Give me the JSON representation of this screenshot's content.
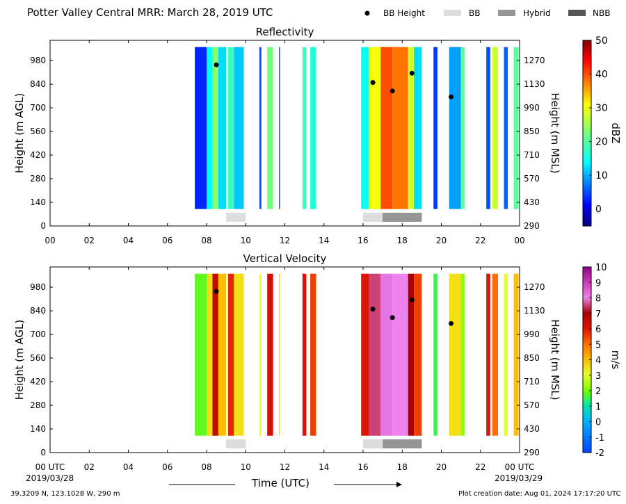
{
  "page": {
    "title": "Potter Valley Central MRR:  March 28, 2019 UTC",
    "legend": [
      {
        "label": "BB Height",
        "kind": "dot",
        "color": "#000000"
      },
      {
        "label": "BB",
        "kind": "bar",
        "color": "#dddddd"
      },
      {
        "label": "Hybrid",
        "kind": "bar",
        "color": "#959595"
      },
      {
        "label": "NBB",
        "kind": "bar",
        "color": "#555555"
      }
    ],
    "time_axis_label": "Time (UTC)",
    "start_date": "2019/03/28",
    "end_date": "2019/03/29",
    "location": "39.3209 N, 123.1028 W, 290 m",
    "creation_date": "Plot creation date: Aug 01, 2024 17:17:20 UTC"
  },
  "chart_data": [
    {
      "type": "heatmap",
      "title": "Reflectivity",
      "ylabel": "Height (m AGL)",
      "ylabel_right": "Height (m MSL)",
      "colorbar_label": "dBZ",
      "x_ticks": [
        "00",
        "02",
        "04",
        "06",
        "08",
        "10",
        "12",
        "14",
        "16",
        "18",
        "20",
        "22",
        "00"
      ],
      "xlim": [
        0,
        24
      ],
      "ylim": [
        0,
        1100
      ],
      "y_ticks": [
        0,
        140,
        280,
        420,
        560,
        700,
        840,
        980
      ],
      "y_ticks_right": [
        290,
        430,
        570,
        710,
        850,
        990,
        1130,
        1270
      ],
      "colorbar_ticks": [
        0,
        10,
        20,
        30,
        40,
        50
      ],
      "clim": [
        -5,
        50
      ],
      "data_extent_height": [
        100,
        1060
      ],
      "bright_band_height": [
        {
          "time": 8.5,
          "height": 955
        },
        {
          "time": 16.5,
          "height": 850
        },
        {
          "time": 17.5,
          "height": 800
        },
        {
          "time": 18.5,
          "height": 905
        },
        {
          "time": 20.5,
          "height": 765
        }
      ],
      "bb_type_bar": [
        {
          "start": 9.0,
          "end": 10.0,
          "type": "BB"
        },
        {
          "start": 16.0,
          "end": 17.0,
          "type": "BB"
        },
        {
          "start": 17.0,
          "end": 19.0,
          "type": "Hybrid"
        }
      ],
      "echo_segments": [
        {
          "start": 7.4,
          "end": 8.0,
          "value": 3
        },
        {
          "start": 8.0,
          "end": 8.3,
          "value": 14
        },
        {
          "start": 8.3,
          "end": 8.6,
          "value": 24
        },
        {
          "start": 8.6,
          "end": 9.0,
          "value": 12
        },
        {
          "start": 9.1,
          "end": 9.4,
          "value": 18
        },
        {
          "start": 9.4,
          "end": 9.9,
          "value": 11
        },
        {
          "start": 10.7,
          "end": 10.8,
          "value": 5
        },
        {
          "start": 11.1,
          "end": 11.4,
          "value": 22
        },
        {
          "start": 11.7,
          "end": 11.75,
          "value": 5
        },
        {
          "start": 12.9,
          "end": 13.1,
          "value": 18
        },
        {
          "start": 13.3,
          "end": 13.6,
          "value": 16
        },
        {
          "start": 15.9,
          "end": 16.3,
          "value": 14
        },
        {
          "start": 16.3,
          "end": 16.9,
          "value": 30
        },
        {
          "start": 16.9,
          "end": 17.5,
          "value": 40
        },
        {
          "start": 17.5,
          "end": 18.3,
          "value": 38
        },
        {
          "start": 18.3,
          "end": 18.6,
          "value": 28
        },
        {
          "start": 18.6,
          "end": 19.0,
          "value": 12
        },
        {
          "start": 19.6,
          "end": 19.8,
          "value": 4
        },
        {
          "start": 20.4,
          "end": 21.0,
          "value": 9
        },
        {
          "start": 21.0,
          "end": 21.2,
          "value": 20
        },
        {
          "start": 22.3,
          "end": 22.5,
          "value": 5
        },
        {
          "start": 22.6,
          "end": 22.9,
          "value": 28
        },
        {
          "start": 23.2,
          "end": 23.4,
          "value": 6
        },
        {
          "start": 23.7,
          "end": 23.95,
          "value": 20
        }
      ]
    },
    {
      "type": "heatmap",
      "title": "Vertical Velocity",
      "ylabel": "Height (m AGL)",
      "ylabel_right": "Height (m MSL)",
      "colorbar_label": "m/s",
      "x_ticks": [
        "00 UTC",
        "02",
        "04",
        "06",
        "08",
        "10",
        "12",
        "14",
        "16",
        "18",
        "20",
        "22",
        "00 UTC"
      ],
      "xlim": [
        0,
        24
      ],
      "ylim": [
        0,
        1100
      ],
      "y_ticks": [
        0,
        140,
        280,
        420,
        560,
        700,
        840,
        980
      ],
      "y_ticks_right": [
        290,
        430,
        570,
        710,
        850,
        990,
        1130,
        1270
      ],
      "colorbar_ticks": [
        -2,
        -1,
        0,
        1,
        2,
        3,
        4,
        5,
        6,
        7,
        8,
        9,
        10
      ],
      "clim": [
        -2,
        10
      ],
      "data_extent_height": [
        100,
        1060
      ],
      "bright_band_height": [
        {
          "time": 8.5,
          "height": 955
        },
        {
          "time": 16.5,
          "height": 850
        },
        {
          "time": 17.5,
          "height": 800
        },
        {
          "time": 18.5,
          "height": 905
        },
        {
          "time": 20.5,
          "height": 765
        }
      ],
      "bb_type_bar": [
        {
          "start": 9.0,
          "end": 10.0,
          "type": "BB"
        },
        {
          "start": 16.0,
          "end": 17.0,
          "type": "BB"
        },
        {
          "start": 17.0,
          "end": 19.0,
          "type": "Hybrid"
        }
      ],
      "echo_segments": [
        {
          "start": 7.4,
          "end": 8.0,
          "value": 1.8
        },
        {
          "start": 8.0,
          "end": 8.3,
          "value": 3.5
        },
        {
          "start": 8.3,
          "end": 8.6,
          "value": 6.5
        },
        {
          "start": 8.6,
          "end": 9.0,
          "value": 4.0
        },
        {
          "start": 9.1,
          "end": 9.4,
          "value": 5.8
        },
        {
          "start": 9.4,
          "end": 9.9,
          "value": 3.5
        },
        {
          "start": 10.7,
          "end": 10.8,
          "value": 3.0
        },
        {
          "start": 11.1,
          "end": 11.4,
          "value": 6.2
        },
        {
          "start": 11.7,
          "end": 11.75,
          "value": 3.5
        },
        {
          "start": 12.9,
          "end": 13.1,
          "value": 6.0
        },
        {
          "start": 13.3,
          "end": 13.6,
          "value": 5.5
        },
        {
          "start": 15.9,
          "end": 16.3,
          "value": 6.0
        },
        {
          "start": 16.3,
          "end": 16.9,
          "value": 7.5
        },
        {
          "start": 16.9,
          "end": 17.5,
          "value": 8.2
        },
        {
          "start": 17.5,
          "end": 18.3,
          "value": 8.0
        },
        {
          "start": 18.3,
          "end": 18.6,
          "value": 7.0
        },
        {
          "start": 18.6,
          "end": 19.0,
          "value": 5.5
        },
        {
          "start": 19.6,
          "end": 19.8,
          "value": 1.5
        },
        {
          "start": 20.4,
          "end": 21.0,
          "value": 3.5
        },
        {
          "start": 21.0,
          "end": 21.2,
          "value": 2.2
        },
        {
          "start": 22.3,
          "end": 22.5,
          "value": 6.0
        },
        {
          "start": 22.6,
          "end": 22.9,
          "value": 5.0
        },
        {
          "start": 23.2,
          "end": 23.4,
          "value": 3.0
        },
        {
          "start": 23.7,
          "end": 23.95,
          "value": 4.0
        }
      ]
    }
  ]
}
